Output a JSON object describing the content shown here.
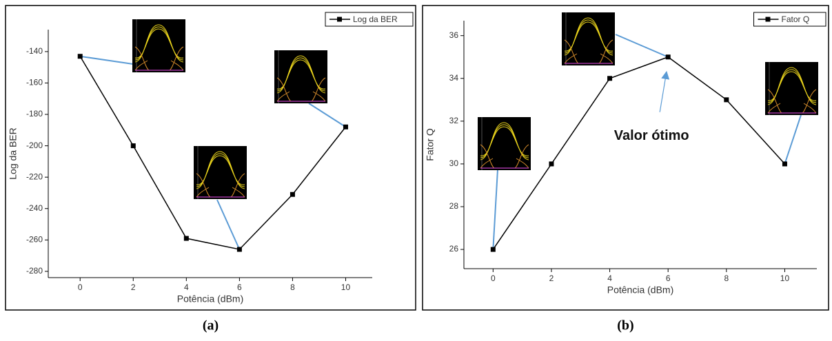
{
  "chart_data": [
    {
      "type": "line",
      "caption": "(a)",
      "x_label": "Potência (dBm)",
      "y_label": "Log da BER",
      "x": [
        0,
        2,
        4,
        6,
        8,
        10
      ],
      "series": [
        {
          "name": "Log da BER",
          "color": "#000000",
          "values": [
            -143,
            -200,
            -259,
            -266,
            -231,
            -188
          ]
        }
      ],
      "xlim": [
        -1.2,
        11
      ],
      "xticks": [
        0,
        2,
        4,
        6,
        8,
        10
      ],
      "ylim": [
        -284,
        -126
      ],
      "yticks": [
        -140,
        -160,
        -180,
        -200,
        -220,
        -240,
        -260,
        -280
      ],
      "legend": "upper right"
    },
    {
      "type": "line",
      "caption": "(b)",
      "x_label": "Potência (dBm)",
      "y_label": "Fator Q",
      "annotation": "Valor ótimo",
      "x": [
        0,
        2,
        4,
        6,
        8,
        10
      ],
      "series": [
        {
          "name": "Fator Q",
          "color": "#000000",
          "values": [
            26,
            30,
            34,
            35,
            33,
            30
          ]
        }
      ],
      "xlim": [
        -1,
        11.1
      ],
      "xticks": [
        0,
        2,
        4,
        6,
        8,
        10
      ],
      "ylim": [
        25.1,
        36.7
      ],
      "yticks": [
        26,
        28,
        30,
        32,
        34,
        36
      ],
      "legend": "upper right"
    }
  ]
}
